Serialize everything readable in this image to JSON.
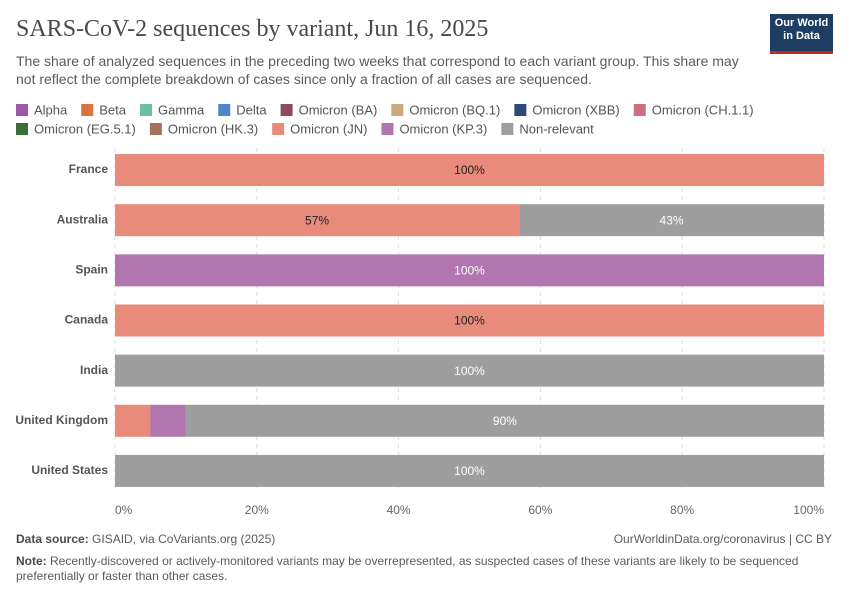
{
  "chart_data": {
    "type": "stacked-bar-horizontal",
    "title": "SARS-CoV-2 sequences by variant, Jun 16, 2025",
    "subtitle": "The share of analyzed sequences in the preceding two weeks that correspond to each variant group. This share may not reflect the complete breakdown of cases since only a fraction of all cases are sequenced.",
    "logo": "Our World in Data",
    "categories": [
      "France",
      "Australia",
      "Spain",
      "Canada",
      "India",
      "United Kingdom",
      "United States"
    ],
    "series": [
      {
        "name": "Alpha",
        "color": "#9b5aa6",
        "values": [
          0,
          0,
          0,
          0,
          0,
          0,
          0
        ]
      },
      {
        "name": "Beta",
        "color": "#d9733f",
        "values": [
          0,
          0,
          0,
          0,
          0,
          0,
          0
        ]
      },
      {
        "name": "Gamma",
        "color": "#6cbf9e",
        "values": [
          0,
          0,
          0,
          0,
          0,
          0,
          0
        ]
      },
      {
        "name": "Delta",
        "color": "#4c88c7",
        "values": [
          0,
          0,
          0,
          0,
          0,
          0,
          0
        ]
      },
      {
        "name": "Omicron (BA)",
        "color": "#8c4a5a",
        "values": [
          0,
          0,
          0,
          0,
          0,
          0,
          0
        ]
      },
      {
        "name": "Omicron (BQ.1)",
        "color": "#c6a97f",
        "values": [
          0,
          0,
          0,
          0,
          0,
          0,
          0
        ]
      },
      {
        "name": "Omicron (XBB)",
        "color": "#2b4a75",
        "values": [
          0,
          0,
          0,
          0,
          0,
          0,
          0
        ]
      },
      {
        "name": "Omicron (CH.1.1)",
        "color": "#cd6e81",
        "values": [
          0,
          0,
          0,
          0,
          0,
          0,
          0
        ]
      },
      {
        "name": "Omicron (EG.5.1)",
        "color": "#3c6e3a",
        "values": [
          0,
          0,
          0,
          0,
          0,
          0,
          0
        ]
      },
      {
        "name": "Omicron (HK.3)",
        "color": "#a4745a",
        "values": [
          0,
          0,
          0,
          0,
          0,
          0,
          0
        ]
      },
      {
        "name": "Omicron (JN)",
        "color": "#e98b7b",
        "values": [
          100,
          57,
          0,
          100,
          0,
          5,
          0
        ],
        "value_labels": [
          "100%",
          "57%",
          null,
          "100%",
          null,
          null,
          null
        ]
      },
      {
        "name": "Omicron (KP.3)",
        "color": "#b176b0",
        "values": [
          0,
          0,
          100,
          0,
          0,
          5,
          0
        ],
        "value_labels": [
          null,
          null,
          "100%",
          null,
          null,
          null,
          null
        ]
      },
      {
        "name": "Non-relevant",
        "color": "#9e9e9e",
        "values": [
          0,
          43,
          0,
          0,
          100,
          90,
          100
        ],
        "value_labels": [
          null,
          "43%",
          null,
          null,
          "100%",
          "90%",
          "100%"
        ]
      }
    ],
    "xlim": [
      0,
      100
    ],
    "xticks": [
      {
        "value": 0,
        "label": "0%"
      },
      {
        "value": 20,
        "label": "20%"
      },
      {
        "value": 40,
        "label": "40%"
      },
      {
        "value": 60,
        "label": "60%"
      },
      {
        "value": 80,
        "label": "80%"
      },
      {
        "value": 100,
        "label": "100%"
      }
    ],
    "grid": true,
    "sources_label": "Data source:",
    "sources": "GISAID, via CoVariants.org (2025)",
    "url": "OurWorldinData.org/coronavirus | CC BY",
    "note_label": "Note:",
    "note": "Recently-discovered or actively-monitored variants may be overrepresented, as suspected cases of these variants are likely to be sequenced preferentially or faster than other cases."
  }
}
